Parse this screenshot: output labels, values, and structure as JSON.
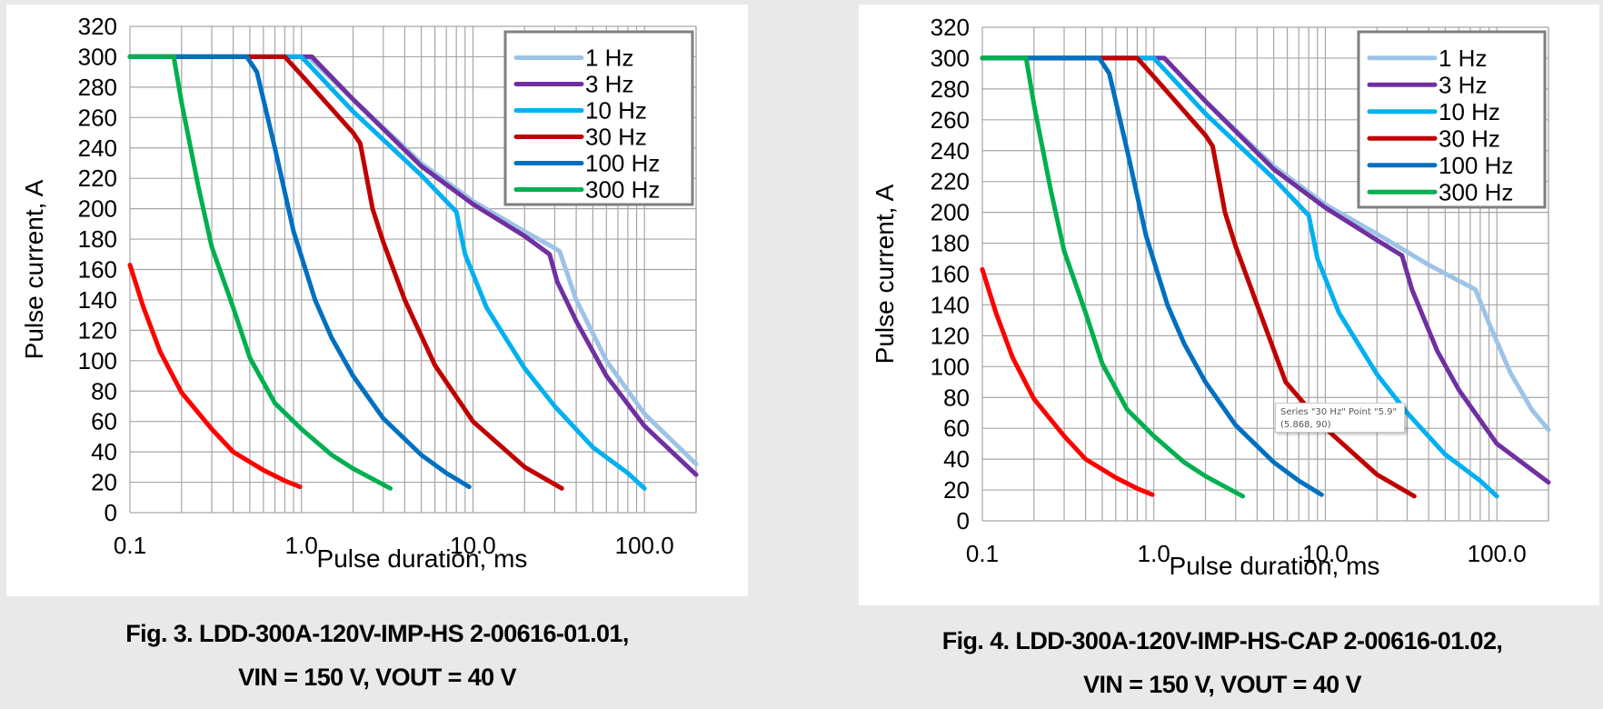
{
  "colors": {
    "1 Hz": "#9DC3E6",
    "3 Hz": "#7030A0",
    "10 Hz": "#00B0F0",
    "30 Hz": "#C00000",
    "100 Hz": "#0070C0",
    "300 Hz": "#00B050",
    "unlabeled": "#FF0000",
    "grid": "#a6a6a6",
    "legend_border": "#7f7f7f"
  },
  "chart_data": [
    {
      "type": "line",
      "title": "",
      "xlabel": "Pulse duration, ms",
      "ylabel": "Pulse current, A",
      "xscale": "log",
      "xlim": [
        0.1,
        200
      ],
      "ylim": [
        0,
        320
      ],
      "xticks": [
        0.1,
        1,
        10,
        100
      ],
      "xtick_labels": [
        "0.1",
        "1.0",
        "10.0",
        "100.0"
      ],
      "yticks": [
        0,
        20,
        40,
        60,
        80,
        100,
        120,
        140,
        160,
        180,
        200,
        220,
        240,
        260,
        280,
        300,
        320
      ],
      "grid": true,
      "legend": "top-right",
      "caption": [
        "Fig. 3. LDD-300A-120V-IMP-HS 2-00616-01.01,",
        "VIN = 150 V, VOUT = 40 V"
      ],
      "series": [
        {
          "name": "1 Hz",
          "in_legend": true,
          "points": [
            [
              0.1,
              300
            ],
            [
              1.1,
              300
            ],
            [
              2,
              272
            ],
            [
              5,
              230
            ],
            [
              10,
              205
            ],
            [
              20,
              185
            ],
            [
              28,
              176
            ],
            [
              32,
              172
            ],
            [
              40,
              140
            ],
            [
              60,
              100
            ],
            [
              100,
              65
            ],
            [
              200,
              32
            ]
          ]
        },
        {
          "name": "3 Hz",
          "in_legend": true,
          "points": [
            [
              0.1,
              300
            ],
            [
              1.15,
              300
            ],
            [
              2,
              272
            ],
            [
              5,
              228
            ],
            [
              10,
              203
            ],
            [
              20,
              182
            ],
            [
              28,
              170
            ],
            [
              31,
              152
            ],
            [
              40,
              126
            ],
            [
              60,
              90
            ],
            [
              100,
              57
            ],
            [
              200,
              25
            ]
          ]
        },
        {
          "name": "10 Hz",
          "in_legend": true,
          "points": [
            [
              0.1,
              300
            ],
            [
              1,
              300
            ],
            [
              2,
              264
            ],
            [
              5,
              222
            ],
            [
              8,
              198
            ],
            [
              9,
              170
            ],
            [
              12,
              135
            ],
            [
              20,
              95
            ],
            [
              30,
              70
            ],
            [
              50,
              43
            ],
            [
              80,
              26
            ],
            [
              100,
              16
            ]
          ]
        },
        {
          "name": "30 Hz",
          "in_legend": true,
          "points": [
            [
              0.1,
              300
            ],
            [
              0.8,
              300
            ],
            [
              1,
              288
            ],
            [
              2,
              250
            ],
            [
              2.2,
              243
            ],
            [
              2.6,
              200
            ],
            [
              3,
              178
            ],
            [
              4,
              140
            ],
            [
              6,
              97
            ],
            [
              10,
              60
            ],
            [
              20,
              30
            ],
            [
              33,
              16
            ]
          ]
        },
        {
          "name": "100 Hz",
          "in_legend": true,
          "points": [
            [
              0.1,
              300
            ],
            [
              0.48,
              300
            ],
            [
              0.55,
              290
            ],
            [
              0.7,
              240
            ],
            [
              0.9,
              185
            ],
            [
              1.2,
              140
            ],
            [
              1.5,
              115
            ],
            [
              2,
              90
            ],
            [
              3,
              62
            ],
            [
              5,
              38
            ],
            [
              7,
              26
            ],
            [
              9.5,
              17
            ]
          ]
        },
        {
          "name": "300 Hz",
          "in_legend": true,
          "points": [
            [
              0.1,
              300
            ],
            [
              0.18,
              300
            ],
            [
              0.2,
              270
            ],
            [
              0.25,
              215
            ],
            [
              0.3,
              175
            ],
            [
              0.4,
              135
            ],
            [
              0.5,
              102
            ],
            [
              0.7,
              72
            ],
            [
              1,
              55
            ],
            [
              1.5,
              38
            ],
            [
              2,
              29
            ],
            [
              3.3,
              16
            ]
          ]
        },
        {
          "name": "unlabeled",
          "in_legend": false,
          "points": [
            [
              0.1,
              163
            ],
            [
              0.12,
              135
            ],
            [
              0.15,
              106
            ],
            [
              0.2,
              79
            ],
            [
              0.3,
              55
            ],
            [
              0.4,
              40
            ],
            [
              0.6,
              28
            ],
            [
              0.8,
              21
            ],
            [
              0.98,
              17
            ]
          ]
        }
      ]
    },
    {
      "type": "line",
      "title": "",
      "xlabel": "Pulse duration, ms",
      "ylabel": "Pulse current, A",
      "xscale": "log",
      "xlim": [
        0.1,
        200
      ],
      "ylim": [
        0,
        320
      ],
      "xticks": [
        0.1,
        1,
        10,
        100
      ],
      "xtick_labels": [
        "0.1",
        "1.0",
        "10.0",
        "100.0"
      ],
      "yticks": [
        0,
        20,
        40,
        60,
        80,
        100,
        120,
        140,
        160,
        180,
        200,
        220,
        240,
        260,
        280,
        300,
        320
      ],
      "grid": true,
      "legend": "top-right",
      "caption": [
        "Fig. 4. LDD-300A-120V-IMP-HS-CAP 2-00616-01.02,",
        "VIN = 150 V, VOUT = 40 V"
      ],
      "tooltip": [
        "Series \"30 Hz\" Point \"5.9\"",
        "(5.868, 90)"
      ],
      "series": [
        {
          "name": "1 Hz",
          "in_legend": true,
          "points": [
            [
              0.1,
              300
            ],
            [
              1.15,
              300
            ],
            [
              2,
              272
            ],
            [
              5,
              230
            ],
            [
              10,
              205
            ],
            [
              20,
              186
            ],
            [
              40,
              166
            ],
            [
              75,
              150
            ],
            [
              90,
              128
            ],
            [
              120,
              96
            ],
            [
              160,
              72
            ],
            [
              200,
              59
            ]
          ]
        },
        {
          "name": "3 Hz",
          "in_legend": true,
          "points": [
            [
              0.1,
              300
            ],
            [
              1.15,
              300
            ],
            [
              2,
              272
            ],
            [
              5,
              228
            ],
            [
              10,
              203
            ],
            [
              20,
              182
            ],
            [
              28,
              172
            ],
            [
              32,
              150
            ],
            [
              45,
              110
            ],
            [
              60,
              85
            ],
            [
              100,
              50
            ],
            [
              200,
              25
            ]
          ]
        },
        {
          "name": "10 Hz",
          "in_legend": true,
          "points": [
            [
              0.1,
              300
            ],
            [
              1,
              300
            ],
            [
              2,
              264
            ],
            [
              5,
              222
            ],
            [
              8,
              198
            ],
            [
              9,
              170
            ],
            [
              12,
              135
            ],
            [
              20,
              95
            ],
            [
              30,
              70
            ],
            [
              50,
              43
            ],
            [
              80,
              26
            ],
            [
              100,
              16
            ]
          ]
        },
        {
          "name": "30 Hz",
          "in_legend": true,
          "points": [
            [
              0.1,
              300
            ],
            [
              0.8,
              300
            ],
            [
              1,
              288
            ],
            [
              2,
              250
            ],
            [
              2.2,
              243
            ],
            [
              2.6,
              200
            ],
            [
              3,
              178
            ],
            [
              4,
              140
            ],
            [
              5.868,
              90
            ],
            [
              10,
              60
            ],
            [
              20,
              30
            ],
            [
              33,
              16
            ]
          ]
        },
        {
          "name": "100 Hz",
          "in_legend": true,
          "points": [
            [
              0.1,
              300
            ],
            [
              0.48,
              300
            ],
            [
              0.55,
              290
            ],
            [
              0.7,
              240
            ],
            [
              0.9,
              185
            ],
            [
              1.2,
              140
            ],
            [
              1.5,
              115
            ],
            [
              2,
              90
            ],
            [
              3,
              62
            ],
            [
              5,
              38
            ],
            [
              7,
              26
            ],
            [
              9.5,
              17
            ]
          ]
        },
        {
          "name": "300 Hz",
          "in_legend": true,
          "points": [
            [
              0.1,
              300
            ],
            [
              0.18,
              300
            ],
            [
              0.2,
              270
            ],
            [
              0.25,
              215
            ],
            [
              0.3,
              175
            ],
            [
              0.4,
              135
            ],
            [
              0.5,
              102
            ],
            [
              0.7,
              72
            ],
            [
              1,
              55
            ],
            [
              1.5,
              38
            ],
            [
              2,
              29
            ],
            [
              3.3,
              16
            ]
          ]
        },
        {
          "name": "unlabeled",
          "in_legend": false,
          "points": [
            [
              0.1,
              163
            ],
            [
              0.12,
              135
            ],
            [
              0.15,
              106
            ],
            [
              0.2,
              79
            ],
            [
              0.3,
              55
            ],
            [
              0.4,
              40
            ],
            [
              0.6,
              28
            ],
            [
              0.8,
              21
            ],
            [
              0.98,
              17
            ]
          ]
        }
      ]
    }
  ]
}
